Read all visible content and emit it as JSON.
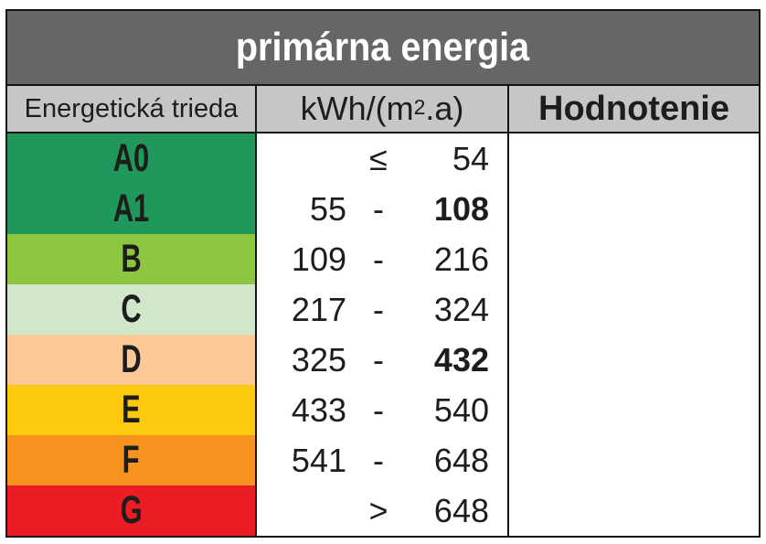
{
  "title": "primárna energia",
  "headers": {
    "class": "Energetická trieda",
    "unit_pre": "kWh/(m",
    "unit_sup": "2",
    "unit_post": ".a)",
    "rating": "Hodnotenie"
  },
  "colors": {
    "title_bg": "#666666",
    "header_bg": "#C6C6C6",
    "border": "#141414",
    "title_text": "#FFFFFF",
    "body_text": "#1D1D1B",
    "class_a": "#21985B",
    "class_b": "#8DC63F",
    "class_c": "#D0E7CB",
    "class_d": "#FBC896",
    "class_e": "#FCC90E",
    "class_f": "#F6921E",
    "class_g": "#EC1C24"
  },
  "rows": [
    {
      "label": "A0",
      "color": "#21985B",
      "low": "",
      "sep": "≤",
      "high": "54",
      "high_weight": "normal"
    },
    {
      "label": "A1",
      "color": "#21985B",
      "low": "55",
      "sep": "-",
      "high": "108",
      "high_weight": "bold"
    },
    {
      "label": "B",
      "color": "#8DC63F",
      "low": "109",
      "sep": "-",
      "high": "216",
      "high_weight": "normal"
    },
    {
      "label": "C",
      "color": "#D0E7CB",
      "low": "217",
      "sep": "-",
      "high": "324",
      "high_weight": "normal"
    },
    {
      "label": "D",
      "color": "#FBC896",
      "low": "325",
      "sep": "-",
      "high": "432",
      "high_weight": "bold"
    },
    {
      "label": "E",
      "color": "#FCC90E",
      "low": "433",
      "sep": "-",
      "high": "540",
      "high_weight": "normal"
    },
    {
      "label": "F",
      "color": "#F6921E",
      "low": "541",
      "sep": "-",
      "high": "648",
      "high_weight": "normal"
    },
    {
      "label": "G",
      "color": "#EC1C24",
      "low": "",
      "sep": ">",
      "high": "648",
      "high_weight": "normal"
    }
  ],
  "rating_cell_value": ""
}
